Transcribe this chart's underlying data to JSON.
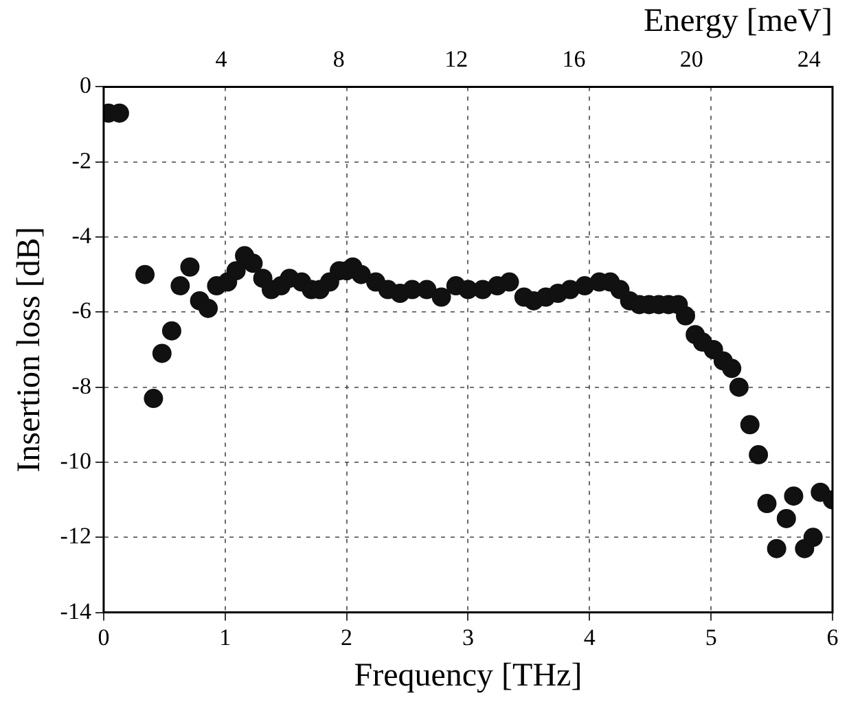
{
  "chart_data": {
    "type": "scatter",
    "xlabel": "Frequency [THz]",
    "ylabel": "Insertion loss [dB]",
    "x2label": "Energy [meV]",
    "xlim": [
      0,
      6
    ],
    "xticks": [
      0,
      1,
      2,
      3,
      4,
      5,
      6
    ],
    "ylim": [
      -14,
      0
    ],
    "yticks": [
      -14,
      -12,
      -10,
      -8,
      -6,
      -4,
      -2,
      0
    ],
    "x2lim": [
      0,
      24.8
    ],
    "x2ticks": [
      4,
      8,
      12,
      16,
      20,
      24
    ],
    "grid": true,
    "marker": "circle",
    "legend": false,
    "series": [
      {
        "color": "#111111",
        "x": [
          0.04,
          0.13,
          0.34,
          0.41,
          0.48,
          0.56,
          0.63,
          0.71,
          0.79,
          0.86,
          0.93,
          1.02,
          1.09,
          1.16,
          1.23,
          1.31,
          1.38,
          1.46,
          1.53,
          1.63,
          1.71,
          1.78,
          1.86,
          1.94,
          2.0,
          2.05,
          2.12,
          2.24,
          2.34,
          2.44,
          2.54,
          2.66,
          2.78,
          2.9,
          3.0,
          3.12,
          3.24,
          3.34,
          3.46,
          3.54,
          3.64,
          3.74,
          3.84,
          3.96,
          4.08,
          4.17,
          4.25,
          4.33,
          4.41,
          4.49,
          4.57,
          4.65,
          4.73,
          4.79,
          4.87,
          4.93,
          5.02,
          5.1,
          5.17,
          5.23,
          5.32,
          5.39,
          5.46,
          5.54,
          5.62,
          5.68,
          5.77,
          5.84,
          5.9,
          6.0
        ],
        "values": [
          -0.7,
          -0.7,
          -5.0,
          -8.3,
          -7.1,
          -6.5,
          -5.3,
          -4.8,
          -5.7,
          -5.9,
          -5.3,
          -5.2,
          -4.9,
          -4.5,
          -4.7,
          -5.1,
          -5.4,
          -5.3,
          -5.1,
          -5.2,
          -5.4,
          -5.4,
          -5.2,
          -4.9,
          -4.9,
          -4.8,
          -5.0,
          -5.2,
          -5.4,
          -5.5,
          -5.4,
          -5.4,
          -5.6,
          -5.3,
          -5.4,
          -5.4,
          -5.3,
          -5.2,
          -5.6,
          -5.7,
          -5.6,
          -5.5,
          -5.4,
          -5.3,
          -5.2,
          -5.2,
          -5.4,
          -5.7,
          -5.8,
          -5.8,
          -5.8,
          -5.8,
          -5.8,
          -6.1,
          -6.6,
          -6.8,
          -7.0,
          -7.3,
          -7.5,
          -8.0,
          -9.0,
          -9.8,
          -11.1,
          -12.3,
          -11.5,
          -10.9,
          -12.3,
          -12.0,
          -10.8,
          -11.0
        ]
      }
    ]
  }
}
